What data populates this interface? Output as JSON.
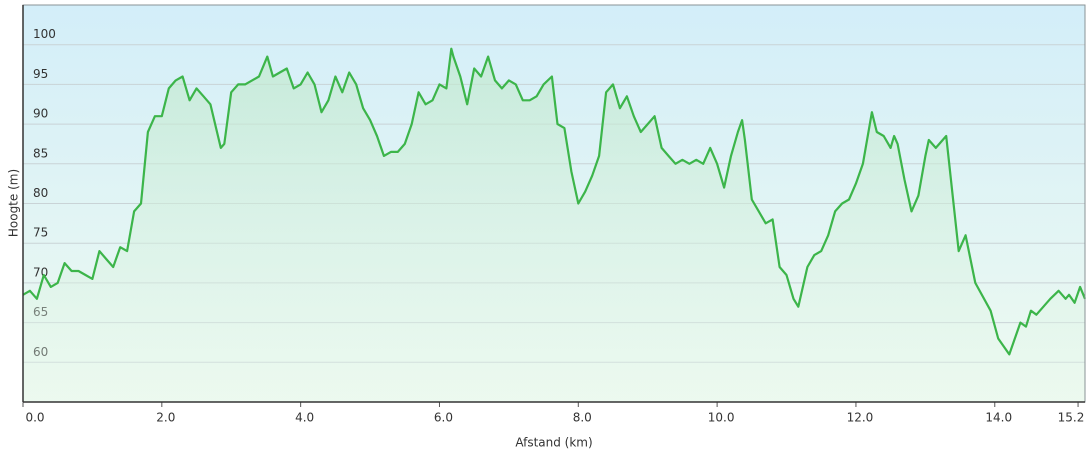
{
  "chart_data": {
    "type": "line",
    "x_label": "Afstand  (km)",
    "y_label": "Hoogte (m)",
    "x": [
      0.0,
      0.1,
      0.2,
      0.3,
      0.4,
      0.5,
      0.6,
      0.7,
      0.8,
      0.9,
      1.0,
      1.1,
      1.2,
      1.3,
      1.4,
      1.5,
      1.6,
      1.7,
      1.8,
      1.9,
      2.0,
      2.1,
      2.2,
      2.3,
      2.4,
      2.5,
      2.6,
      2.7,
      2.85,
      2.9,
      3.0,
      3.1,
      3.2,
      3.3,
      3.4,
      3.52,
      3.6,
      3.7,
      3.8,
      3.9,
      4.0,
      4.1,
      4.2,
      4.3,
      4.4,
      4.5,
      4.6,
      4.7,
      4.8,
      4.9,
      5.0,
      5.1,
      5.2,
      5.3,
      5.4,
      5.5,
      5.6,
      5.7,
      5.8,
      5.9,
      6.0,
      6.1,
      6.17,
      6.2,
      6.3,
      6.4,
      6.5,
      6.6,
      6.7,
      6.8,
      6.9,
      7.0,
      7.1,
      7.2,
      7.3,
      7.4,
      7.5,
      7.62,
      7.7,
      7.8,
      7.9,
      8.0,
      8.1,
      8.2,
      8.3,
      8.4,
      8.5,
      8.6,
      8.7,
      8.8,
      8.9,
      9.0,
      9.1,
      9.2,
      9.3,
      9.4,
      9.5,
      9.6,
      9.7,
      9.8,
      9.9,
      10.0,
      10.1,
      10.2,
      10.3,
      10.36,
      10.4,
      10.5,
      10.6,
      10.7,
      10.8,
      10.9,
      11.0,
      11.1,
      11.17,
      11.3,
      11.4,
      11.5,
      11.6,
      11.7,
      11.8,
      11.9,
      12.0,
      12.1,
      12.23,
      12.3,
      12.4,
      12.5,
      12.55,
      12.6,
      12.7,
      12.8,
      12.9,
      13.0,
      13.05,
      13.15,
      13.3,
      13.48,
      13.58,
      13.72,
      13.94,
      14.05,
      14.21,
      14.37,
      14.45,
      14.52,
      14.6,
      14.8,
      14.92,
      15.02,
      15.07,
      15.15,
      15.23,
      15.3
    ],
    "values": [
      68.5,
      69,
      68,
      71,
      69.5,
      70,
      72.5,
      71.5,
      71.5,
      71,
      70.5,
      74,
      73,
      72,
      74.5,
      74,
      79,
      80,
      89,
      91,
      91,
      94.5,
      95.5,
      96,
      93,
      94.5,
      93.5,
      92.5,
      87,
      87.5,
      94,
      95,
      95,
      95.5,
      96,
      98.5,
      96,
      96.5,
      97,
      94.5,
      95,
      96.5,
      95,
      91.5,
      93,
      96,
      94,
      96.5,
      95,
      92,
      90.5,
      88.5,
      86,
      86.5,
      86.5,
      87.5,
      90,
      94,
      92.5,
      93,
      95,
      94.5,
      99.5,
      98.5,
      96,
      92.5,
      97,
      96,
      98.5,
      95.5,
      94.5,
      95.5,
      95,
      93,
      93,
      93.5,
      95,
      96,
      90,
      89.5,
      84,
      80,
      81.5,
      83.5,
      86,
      94,
      95,
      92,
      93.5,
      91,
      89,
      90,
      91,
      87,
      86,
      85,
      85.5,
      85,
      85.5,
      85,
      87,
      85,
      82,
      86,
      89,
      90.5,
      88,
      80.5,
      79,
      77.5,
      78,
      72,
      71,
      68,
      67,
      72,
      73.5,
      74,
      76,
      79,
      80,
      80.5,
      82.5,
      85,
      91.5,
      89,
      88.5,
      87,
      88.5,
      87.5,
      83,
      79,
      81,
      86,
      88,
      87,
      88.5,
      74,
      76,
      70,
      66.5,
      63,
      61,
      65,
      64.5,
      66.5,
      66,
      68,
      69,
      68,
      68.5,
      67.5,
      69.5,
      68
    ],
    "color": "#3cb54a",
    "xlim": [
      0,
      15.3
    ],
    "xticks": [
      {
        "value": 0,
        "label": "0.0"
      },
      {
        "value": 2,
        "label": "2.0"
      },
      {
        "value": 4,
        "label": "4.0"
      },
      {
        "value": 6,
        "label": "6.0"
      },
      {
        "value": 8,
        "label": "8.0"
      },
      {
        "value": 10,
        "label": "10.0"
      },
      {
        "value": 12,
        "label": "12.0"
      },
      {
        "value": 14,
        "label": "14.0"
      },
      15.2
    ],
    "ylim": [
      55,
      105
    ],
    "yticks": [
      60,
      65,
      70,
      75,
      80,
      85,
      90,
      95,
      100
    ],
    "grid": true
  }
}
